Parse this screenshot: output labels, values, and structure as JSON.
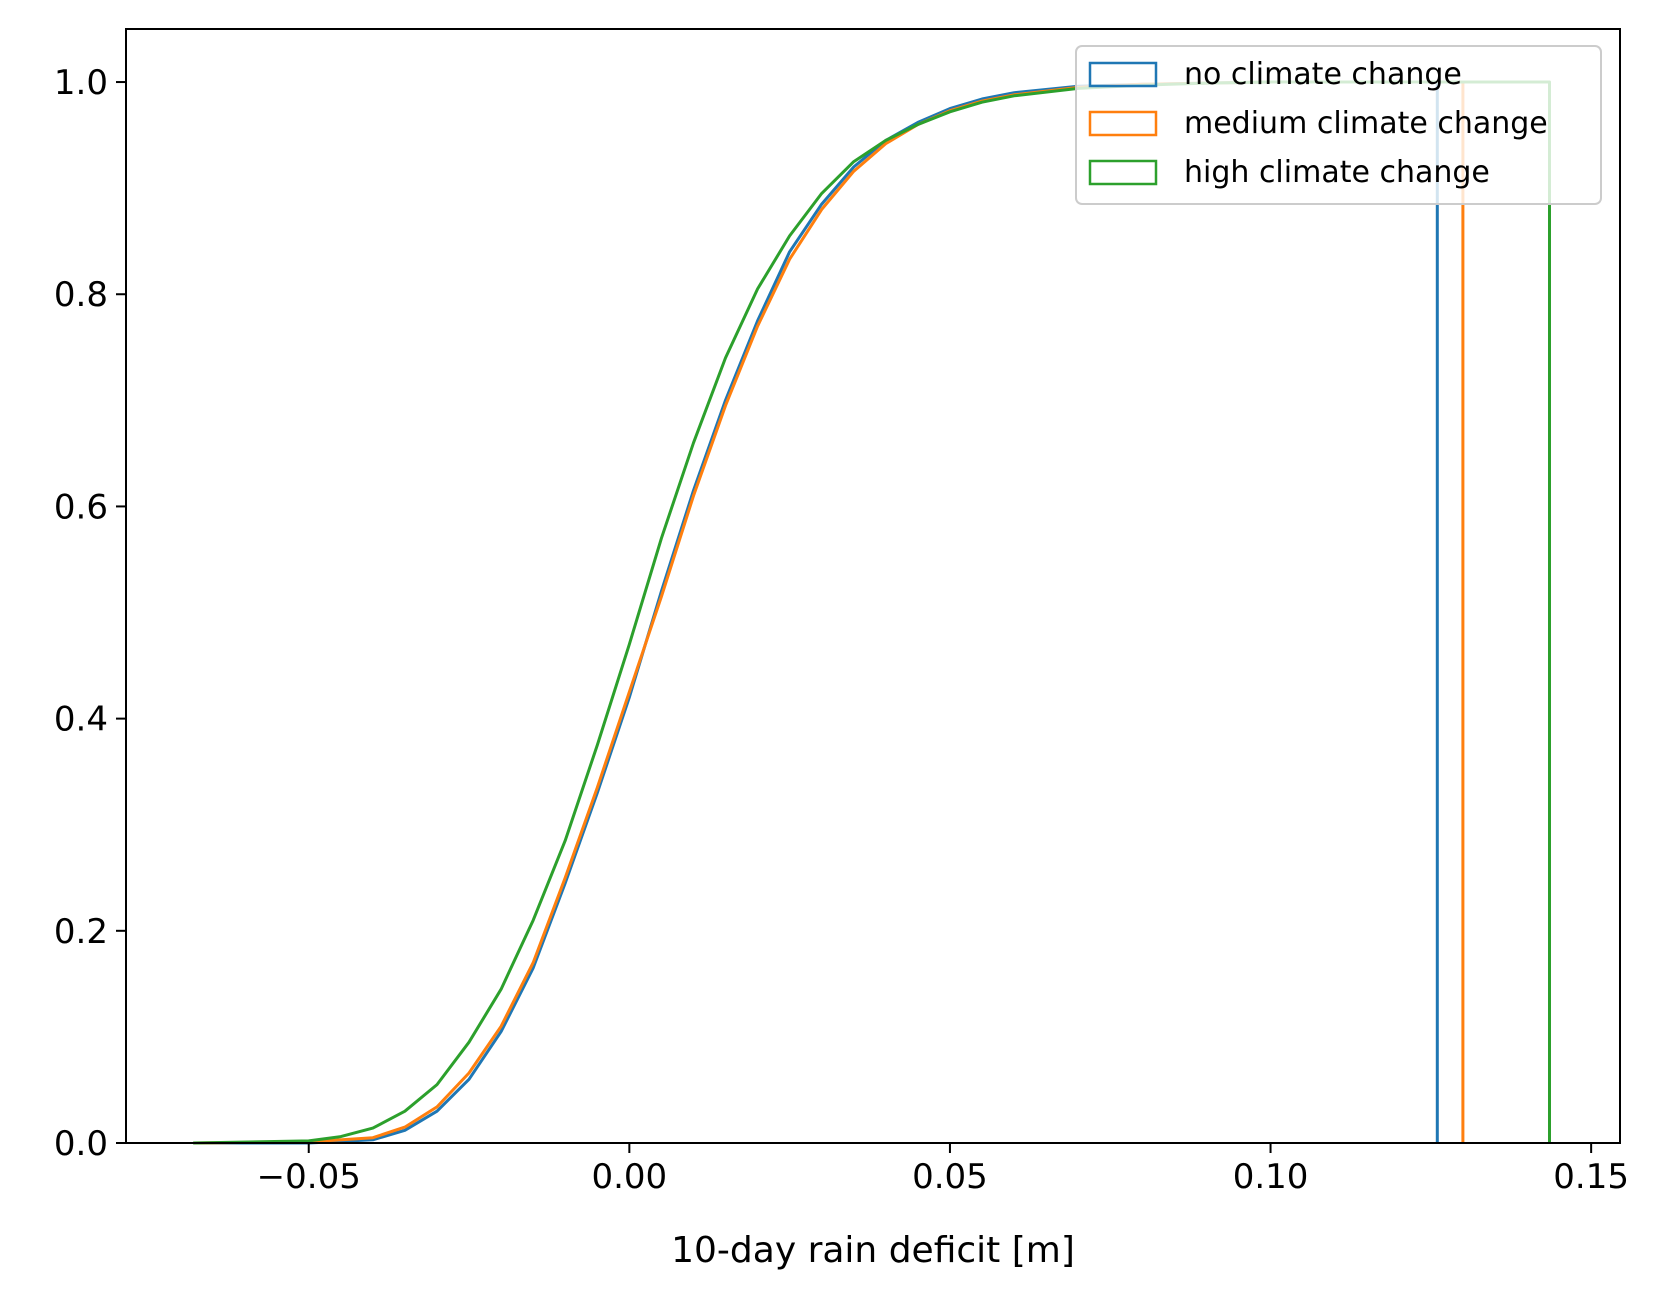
{
  "chart_data": {
    "type": "line",
    "subtype": "step cumulative histogram",
    "title": "",
    "xlabel": "10-day rain deficit [m]",
    "ylabel": "",
    "xlim": [
      -0.0785,
      0.1545
    ],
    "ylim": [
      0.0,
      1.05
    ],
    "x_ticks": [
      -0.05,
      0.0,
      0.05,
      0.1,
      0.15
    ],
    "x_tick_labels": [
      "−0.05",
      "0.00",
      "0.05",
      "0.10",
      "0.15"
    ],
    "y_ticks": [
      0.0,
      0.2,
      0.4,
      0.6,
      0.8,
      1.0
    ],
    "y_tick_labels": [
      "0.0",
      "0.2",
      "0.4",
      "0.6",
      "0.8",
      "1.0"
    ],
    "grid": false,
    "legend_position": "top-right",
    "series": [
      {
        "name": "no climate change",
        "color": "#1f77b4",
        "x": [
          -0.068,
          -0.05,
          -0.04,
          -0.035,
          -0.03,
          -0.025,
          -0.02,
          -0.015,
          -0.01,
          -0.005,
          0.0,
          0.005,
          0.01,
          0.015,
          0.02,
          0.025,
          0.03,
          0.035,
          0.04,
          0.045,
          0.05,
          0.055,
          0.06,
          0.07,
          0.08,
          0.09,
          0.1,
          0.11,
          0.126
        ],
        "cdf": [
          0.0,
          0.0,
          0.003,
          0.012,
          0.03,
          0.06,
          0.105,
          0.165,
          0.245,
          0.33,
          0.42,
          0.52,
          0.615,
          0.7,
          0.775,
          0.84,
          0.885,
          0.92,
          0.945,
          0.962,
          0.975,
          0.984,
          0.99,
          0.996,
          0.998,
          0.999,
          1.0,
          1.0,
          1.0
        ]
      },
      {
        "name": "medium climate change",
        "color": "#ff7f0e",
        "x": [
          -0.068,
          -0.05,
          -0.04,
          -0.035,
          -0.03,
          -0.025,
          -0.02,
          -0.015,
          -0.01,
          -0.005,
          0.0,
          0.005,
          0.01,
          0.015,
          0.02,
          0.025,
          0.03,
          0.035,
          0.04,
          0.045,
          0.05,
          0.055,
          0.06,
          0.07,
          0.08,
          0.09,
          0.1,
          0.11,
          0.13
        ],
        "cdf": [
          0.0,
          0.001,
          0.005,
          0.015,
          0.034,
          0.066,
          0.11,
          0.17,
          0.25,
          0.335,
          0.425,
          0.515,
          0.61,
          0.695,
          0.77,
          0.833,
          0.88,
          0.916,
          0.942,
          0.96,
          0.973,
          0.982,
          0.988,
          0.995,
          0.998,
          0.999,
          1.0,
          1.0,
          1.0
        ]
      },
      {
        "name": "high climate change",
        "color": "#2ca02c",
        "x": [
          -0.068,
          -0.05,
          -0.045,
          -0.04,
          -0.035,
          -0.03,
          -0.025,
          -0.02,
          -0.015,
          -0.01,
          -0.005,
          0.0,
          0.005,
          0.01,
          0.015,
          0.02,
          0.025,
          0.03,
          0.035,
          0.04,
          0.045,
          0.05,
          0.055,
          0.06,
          0.07,
          0.08,
          0.09,
          0.1,
          0.11,
          0.1435
        ],
        "cdf": [
          0.0,
          0.002,
          0.006,
          0.014,
          0.03,
          0.055,
          0.095,
          0.145,
          0.21,
          0.285,
          0.375,
          0.47,
          0.57,
          0.66,
          0.74,
          0.805,
          0.855,
          0.895,
          0.925,
          0.945,
          0.96,
          0.972,
          0.981,
          0.987,
          0.994,
          0.997,
          0.999,
          1.0,
          1.0,
          1.0
        ]
      }
    ]
  }
}
